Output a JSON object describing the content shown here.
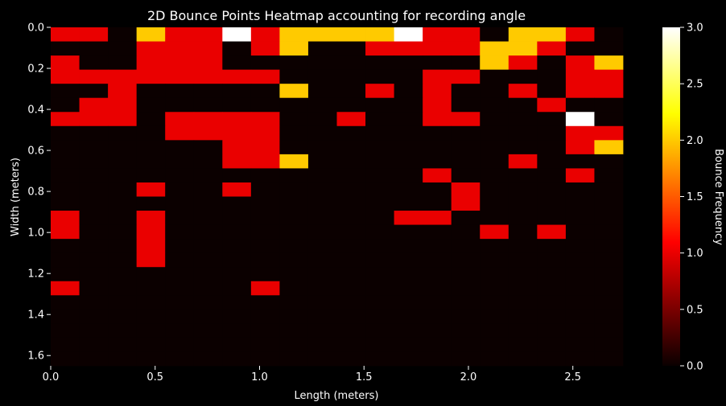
{
  "chart_data": {
    "type": "heatmap",
    "title": "2D Bounce Points Heatmap accounting for recording angle",
    "xlabel": "Length (meters)",
    "ylabel": "Width (meters)",
    "colorbar_label": "Bounce Frequency",
    "x_range": [
      0.0,
      2.74
    ],
    "y_range": [
      0.0,
      1.65
    ],
    "x_ticks": [
      0.0,
      0.5,
      1.0,
      1.5,
      2.0,
      2.5
    ],
    "x_tick_labels": [
      "0.0",
      "0.5",
      "1.0",
      "1.5",
      "2.0",
      "2.5"
    ],
    "y_ticks": [
      0.0,
      0.2,
      0.4,
      0.6,
      0.8,
      1.0,
      1.2,
      1.4,
      1.6
    ],
    "y_tick_labels": [
      "0.0",
      "0.2",
      "0.4",
      "0.6",
      "0.8",
      "1.0",
      "1.2",
      "1.4",
      "1.6"
    ],
    "colorbar_range": [
      0.0,
      3.0
    ],
    "colorbar_ticks": [
      0.0,
      0.5,
      1.0,
      1.5,
      2.0,
      2.5,
      3.0
    ],
    "colorbar_tick_labels": [
      "0.0",
      "0.5",
      "1.0",
      "1.5",
      "2.0",
      "2.5",
      "3.0"
    ],
    "colormap": "hot",
    "y_axis_inverted": true,
    "grid": false,
    "values": [
      [
        1,
        1,
        0,
        2,
        1,
        1,
        3,
        1,
        2,
        2,
        2,
        2,
        3,
        1,
        1,
        0,
        2,
        2,
        1,
        0
      ],
      [
        0,
        0,
        0,
        1,
        1,
        1,
        0,
        1,
        2,
        0,
        0,
        1,
        1,
        1,
        1,
        2,
        2,
        1,
        0,
        0
      ],
      [
        1,
        0,
        0,
        1,
        1,
        1,
        0,
        0,
        0,
        0,
        0,
        0,
        0,
        0,
        0,
        2,
        1,
        0,
        1,
        2
      ],
      [
        1,
        1,
        1,
        1,
        1,
        1,
        1,
        1,
        0,
        0,
        0,
        0,
        0,
        1,
        1,
        0,
        0,
        0,
        1,
        1
      ],
      [
        0,
        0,
        1,
        0,
        0,
        0,
        0,
        0,
        2,
        0,
        0,
        1,
        0,
        1,
        0,
        0,
        1,
        0,
        1,
        1
      ],
      [
        0,
        1,
        1,
        0,
        0,
        0,
        0,
        0,
        0,
        0,
        0,
        0,
        0,
        1,
        0,
        0,
        0,
        1,
        0,
        0
      ],
      [
        1,
        1,
        1,
        0,
        1,
        1,
        1,
        1,
        0,
        0,
        1,
        0,
        0,
        1,
        1,
        0,
        0,
        0,
        3,
        0
      ],
      [
        0,
        0,
        0,
        0,
        1,
        1,
        1,
        1,
        0,
        0,
        0,
        0,
        0,
        0,
        0,
        0,
        0,
        0,
        1,
        1
      ],
      [
        0,
        0,
        0,
        0,
        0,
        0,
        1,
        1,
        0,
        0,
        0,
        0,
        0,
        0,
        0,
        0,
        0,
        0,
        1,
        2
      ],
      [
        0,
        0,
        0,
        0,
        0,
        0,
        1,
        1,
        2,
        0,
        0,
        0,
        0,
        0,
        0,
        0,
        1,
        0,
        0,
        0
      ],
      [
        0,
        0,
        0,
        0,
        0,
        0,
        0,
        0,
        0,
        0,
        0,
        0,
        0,
        1,
        0,
        0,
        0,
        0,
        1,
        0
      ],
      [
        0,
        0,
        0,
        1,
        0,
        0,
        1,
        0,
        0,
        0,
        0,
        0,
        0,
        0,
        1,
        0,
        0,
        0,
        0,
        0
      ],
      [
        0,
        0,
        0,
        0,
        0,
        0,
        0,
        0,
        0,
        0,
        0,
        0,
        0,
        0,
        1,
        0,
        0,
        0,
        0,
        0
      ],
      [
        1,
        0,
        0,
        1,
        0,
        0,
        0,
        0,
        0,
        0,
        0,
        0,
        1,
        1,
        0,
        0,
        0,
        0,
        0,
        0
      ],
      [
        1,
        0,
        0,
        1,
        0,
        0,
        0,
        0,
        0,
        0,
        0,
        0,
        0,
        0,
        0,
        1,
        0,
        1,
        0,
        0
      ],
      [
        0,
        0,
        0,
        1,
        0,
        0,
        0,
        0,
        0,
        0,
        0,
        0,
        0,
        0,
        0,
        0,
        0,
        0,
        0,
        0
      ],
      [
        0,
        0,
        0,
        1,
        0,
        0,
        0,
        0,
        0,
        0,
        0,
        0,
        0,
        0,
        0,
        0,
        0,
        0,
        0,
        0
      ],
      [
        0,
        0,
        0,
        0,
        0,
        0,
        0,
        0,
        0,
        0,
        0,
        0,
        0,
        0,
        0,
        0,
        0,
        0,
        0,
        0
      ],
      [
        1,
        0,
        0,
        0,
        0,
        0,
        0,
        1,
        0,
        0,
        0,
        0,
        0,
        0,
        0,
        0,
        0,
        0,
        0,
        0
      ],
      [
        0,
        0,
        0,
        0,
        0,
        0,
        0,
        0,
        0,
        0,
        0,
        0,
        0,
        0,
        0,
        0,
        0,
        0,
        0,
        0
      ],
      [
        0,
        0,
        0,
        0,
        0,
        0,
        0,
        0,
        0,
        0,
        0,
        0,
        0,
        0,
        0,
        0,
        0,
        0,
        0,
        0
      ],
      [
        0,
        0,
        0,
        0,
        0,
        0,
        0,
        0,
        0,
        0,
        0,
        0,
        0,
        0,
        0,
        0,
        0,
        0,
        0,
        0
      ],
      [
        0,
        0,
        0,
        0,
        0,
        0,
        0,
        0,
        0,
        0,
        0,
        0,
        0,
        0,
        0,
        0,
        0,
        0,
        0,
        0
      ],
      [
        0,
        0,
        0,
        0,
        0,
        0,
        0,
        0,
        0,
        0,
        0,
        0,
        0,
        0,
        0,
        0,
        0,
        0,
        0,
        0
      ]
    ]
  }
}
